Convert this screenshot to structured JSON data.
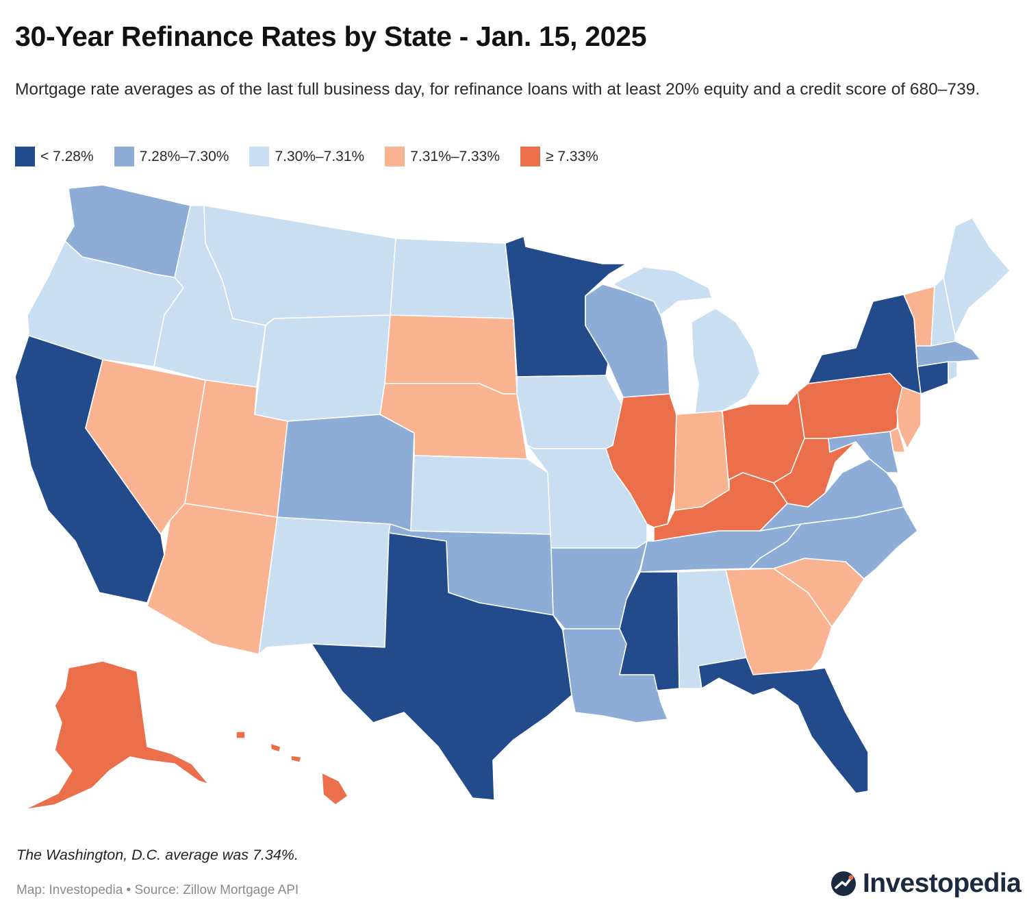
{
  "header": {
    "title": "30-Year Refinance Rates by State - Jan. 15, 2025",
    "subtitle": "Mortgage rate averages as of the last full business day, for refinance loans with at least 20% equity and a credit score of 680–739."
  },
  "legend": {
    "items": [
      {
        "label": "< 7.28%",
        "color": "#234b8b"
      },
      {
        "label": "7.28%–7.30%",
        "color": "#8eadd6"
      },
      {
        "label": "7.30%–7.31%",
        "color": "#c9def0"
      },
      {
        "label": "7.31%–7.33%",
        "color": "#f9b391"
      },
      {
        "label": "≥ 7.33%",
        "color": "#ec6f4c"
      }
    ]
  },
  "map_data": {
    "states": [
      {
        "name": "WA",
        "bin": 1
      },
      {
        "name": "OR",
        "bin": 2
      },
      {
        "name": "CA",
        "bin": 0
      },
      {
        "name": "NV",
        "bin": 3
      },
      {
        "name": "ID",
        "bin": 2
      },
      {
        "name": "MT",
        "bin": 2
      },
      {
        "name": "WY",
        "bin": 2
      },
      {
        "name": "UT",
        "bin": 3
      },
      {
        "name": "AZ",
        "bin": 3
      },
      {
        "name": "CO",
        "bin": 1
      },
      {
        "name": "NM",
        "bin": 2
      },
      {
        "name": "ND",
        "bin": 2
      },
      {
        "name": "SD",
        "bin": 3
      },
      {
        "name": "NE",
        "bin": 3
      },
      {
        "name": "KS",
        "bin": 2
      },
      {
        "name": "OK",
        "bin": 1
      },
      {
        "name": "TX",
        "bin": 0
      },
      {
        "name": "MN",
        "bin": 0
      },
      {
        "name": "IA",
        "bin": 2
      },
      {
        "name": "MO",
        "bin": 2
      },
      {
        "name": "AR",
        "bin": 1
      },
      {
        "name": "LA",
        "bin": 1
      },
      {
        "name": "WI",
        "bin": 1
      },
      {
        "name": "IL",
        "bin": 4
      },
      {
        "name": "MI",
        "bin": 2
      },
      {
        "name": "IN",
        "bin": 3
      },
      {
        "name": "OH",
        "bin": 4
      },
      {
        "name": "KY",
        "bin": 4
      },
      {
        "name": "TN",
        "bin": 1
      },
      {
        "name": "MS",
        "bin": 0
      },
      {
        "name": "AL",
        "bin": 2
      },
      {
        "name": "GA",
        "bin": 3
      },
      {
        "name": "FL",
        "bin": 0
      },
      {
        "name": "SC",
        "bin": 3
      },
      {
        "name": "NC",
        "bin": 1
      },
      {
        "name": "VA",
        "bin": 1
      },
      {
        "name": "WV",
        "bin": 4
      },
      {
        "name": "PA",
        "bin": 4
      },
      {
        "name": "NY",
        "bin": 0
      },
      {
        "name": "VT",
        "bin": 3
      },
      {
        "name": "NH",
        "bin": 2
      },
      {
        "name": "ME",
        "bin": 2
      },
      {
        "name": "MA",
        "bin": 1
      },
      {
        "name": "RI",
        "bin": 2
      },
      {
        "name": "CT",
        "bin": 0
      },
      {
        "name": "NJ",
        "bin": 3
      },
      {
        "name": "DE",
        "bin": 3
      },
      {
        "name": "MD",
        "bin": 1
      },
      {
        "name": "AK",
        "bin": 4
      },
      {
        "name": "HI",
        "bin": 4
      }
    ]
  },
  "footer": {
    "note": "The Washington, D.C. average was 7.34%.",
    "source": "Map: Investopedia • Source: Zillow Mortgage API",
    "brand": "Investopedia"
  }
}
